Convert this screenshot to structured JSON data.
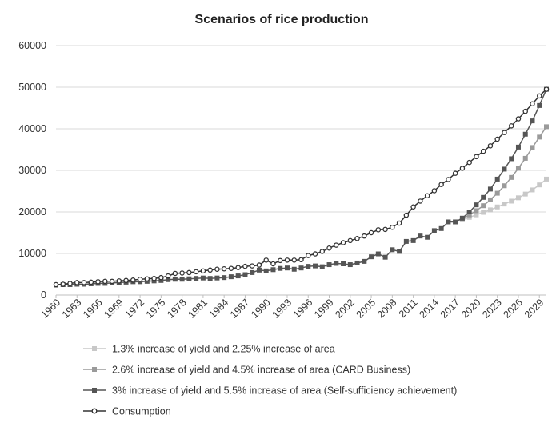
{
  "chart_data": {
    "type": "line",
    "title": "Scenarios of rice production",
    "xlabel": "",
    "ylabel": "",
    "ylim": [
      0,
      60000
    ],
    "yticks": [
      0,
      10000,
      20000,
      30000,
      40000,
      50000,
      60000
    ],
    "x_start": 1960,
    "x_end": 2030,
    "x_tick_labels": [
      "1960",
      "1963",
      "1966",
      "1969",
      "1972",
      "1975",
      "1978",
      "1981",
      "1984",
      "1987",
      "1990",
      "1993",
      "1996",
      "1999",
      "2002",
      "2005",
      "2008",
      "2011",
      "2014",
      "2017",
      "2020",
      "2023",
      "2026",
      "2029"
    ],
    "legend_position": "bottom",
    "series": [
      {
        "name": "1.3% increase of yield and 2.25% increase of area",
        "color": "#c8c8c8",
        "marker": "square",
        "points": [
          [
            2017,
            17600
          ],
          [
            2018,
            18100
          ],
          [
            2019,
            18700
          ],
          [
            2020,
            19300
          ],
          [
            2021,
            19900
          ],
          [
            2022,
            20500
          ],
          [
            2023,
            21200
          ],
          [
            2024,
            21900
          ],
          [
            2025,
            22600
          ],
          [
            2026,
            23400
          ],
          [
            2027,
            24300
          ],
          [
            2028,
            25300
          ],
          [
            2029,
            26500
          ],
          [
            2030,
            27900
          ]
        ]
      },
      {
        "name": "2.6% increase of yield and 4.5% increase of area (CARD Business)",
        "color": "#9a9a9a",
        "marker": "square",
        "points": [
          [
            2017,
            17600
          ],
          [
            2018,
            18400
          ],
          [
            2019,
            19300
          ],
          [
            2020,
            20300
          ],
          [
            2021,
            21500
          ],
          [
            2022,
            22900
          ],
          [
            2023,
            24500
          ],
          [
            2024,
            26300
          ],
          [
            2025,
            28300
          ],
          [
            2026,
            30500
          ],
          [
            2027,
            32900
          ],
          [
            2028,
            35500
          ],
          [
            2029,
            38000
          ],
          [
            2030,
            40500
          ]
        ]
      },
      {
        "name": "3% increase of yield and 5.5% increase of area (Self-sufficiency achievement)",
        "color": "#555555",
        "marker": "square",
        "points": [
          [
            1960,
            2400
          ],
          [
            1961,
            2500
          ],
          [
            1962,
            2500
          ],
          [
            1963,
            2600
          ],
          [
            1964,
            2600
          ],
          [
            1965,
            2700
          ],
          [
            1966,
            2800
          ],
          [
            1967,
            2800
          ],
          [
            1968,
            2900
          ],
          [
            1969,
            3000
          ],
          [
            1970,
            3100
          ],
          [
            1971,
            3200
          ],
          [
            1972,
            3200
          ],
          [
            1973,
            3300
          ],
          [
            1974,
            3400
          ],
          [
            1975,
            3500
          ],
          [
            1976,
            3700
          ],
          [
            1977,
            3800
          ],
          [
            1978,
            3800
          ],
          [
            1979,
            3900
          ],
          [
            1980,
            4000
          ],
          [
            1981,
            4100
          ],
          [
            1982,
            4000
          ],
          [
            1983,
            4100
          ],
          [
            1984,
            4200
          ],
          [
            1985,
            4400
          ],
          [
            1986,
            4600
          ],
          [
            1987,
            4900
          ],
          [
            1988,
            5400
          ],
          [
            1989,
            6000
          ],
          [
            1990,
            5800
          ],
          [
            1991,
            6100
          ],
          [
            1992,
            6400
          ],
          [
            1993,
            6500
          ],
          [
            1994,
            6200
          ],
          [
            1995,
            6500
          ],
          [
            1996,
            6900
          ],
          [
            1997,
            7000
          ],
          [
            1998,
            6800
          ],
          [
            1999,
            7300
          ],
          [
            2000,
            7600
          ],
          [
            2001,
            7500
          ],
          [
            2002,
            7300
          ],
          [
            2003,
            7700
          ],
          [
            2004,
            8100
          ],
          [
            2005,
            9200
          ],
          [
            2006,
            9900
          ],
          [
            2007,
            9100
          ],
          [
            2008,
            10900
          ],
          [
            2009,
            10500
          ],
          [
            2010,
            12900
          ],
          [
            2011,
            13100
          ],
          [
            2012,
            14200
          ],
          [
            2013,
            13900
          ],
          [
            2014,
            15500
          ],
          [
            2015,
            16000
          ],
          [
            2016,
            17600
          ],
          [
            2017,
            17600
          ],
          [
            2018,
            18500
          ],
          [
            2019,
            20000
          ],
          [
            2020,
            21700
          ],
          [
            2021,
            23500
          ],
          [
            2022,
            25500
          ],
          [
            2023,
            27900
          ],
          [
            2024,
            30300
          ],
          [
            2025,
            32800
          ],
          [
            2026,
            35600
          ],
          [
            2027,
            38700
          ],
          [
            2028,
            41900
          ],
          [
            2029,
            45600
          ],
          [
            2030,
            49500
          ]
        ]
      },
      {
        "name": "Consumption",
        "color": "#333333",
        "marker": "circle",
        "points": [
          [
            1960,
            2500
          ],
          [
            1961,
            2600
          ],
          [
            1962,
            2800
          ],
          [
            1963,
            3000
          ],
          [
            1964,
            3000
          ],
          [
            1965,
            3100
          ],
          [
            1966,
            3200
          ],
          [
            1967,
            3300
          ],
          [
            1968,
            3300
          ],
          [
            1969,
            3400
          ],
          [
            1970,
            3500
          ],
          [
            1971,
            3600
          ],
          [
            1972,
            3800
          ],
          [
            1973,
            3900
          ],
          [
            1974,
            4000
          ],
          [
            1975,
            4200
          ],
          [
            1976,
            4600
          ],
          [
            1977,
            5200
          ],
          [
            1978,
            5300
          ],
          [
            1979,
            5400
          ],
          [
            1980,
            5600
          ],
          [
            1981,
            5800
          ],
          [
            1982,
            6000
          ],
          [
            1983,
            6200
          ],
          [
            1984,
            6300
          ],
          [
            1985,
            6400
          ],
          [
            1986,
            6600
          ],
          [
            1987,
            6900
          ],
          [
            1988,
            7000
          ],
          [
            1989,
            7200
          ],
          [
            1990,
            8400
          ],
          [
            1991,
            7500
          ],
          [
            1992,
            8300
          ],
          [
            1993,
            8400
          ],
          [
            1994,
            8400
          ],
          [
            1995,
            8500
          ],
          [
            1996,
            9500
          ],
          [
            1997,
            9900
          ],
          [
            1998,
            10500
          ],
          [
            1999,
            11300
          ],
          [
            2000,
            12000
          ],
          [
            2001,
            12600
          ],
          [
            2002,
            13100
          ],
          [
            2003,
            13600
          ],
          [
            2004,
            14200
          ],
          [
            2005,
            15000
          ],
          [
            2006,
            15700
          ],
          [
            2007,
            15800
          ],
          [
            2008,
            16300
          ],
          [
            2009,
            17300
          ],
          [
            2010,
            19200
          ],
          [
            2011,
            21200
          ],
          [
            2012,
            22600
          ],
          [
            2013,
            23900
          ],
          [
            2014,
            25100
          ],
          [
            2015,
            26600
          ],
          [
            2016,
            27800
          ],
          [
            2017,
            29300
          ],
          [
            2018,
            30500
          ],
          [
            2019,
            31900
          ],
          [
            2020,
            33300
          ],
          [
            2021,
            34600
          ],
          [
            2022,
            35900
          ],
          [
            2023,
            37500
          ],
          [
            2024,
            39100
          ],
          [
            2025,
            40700
          ],
          [
            2026,
            42400
          ],
          [
            2027,
            44200
          ],
          [
            2028,
            46000
          ],
          [
            2029,
            47900
          ],
          [
            2030,
            49500
          ]
        ]
      }
    ]
  }
}
